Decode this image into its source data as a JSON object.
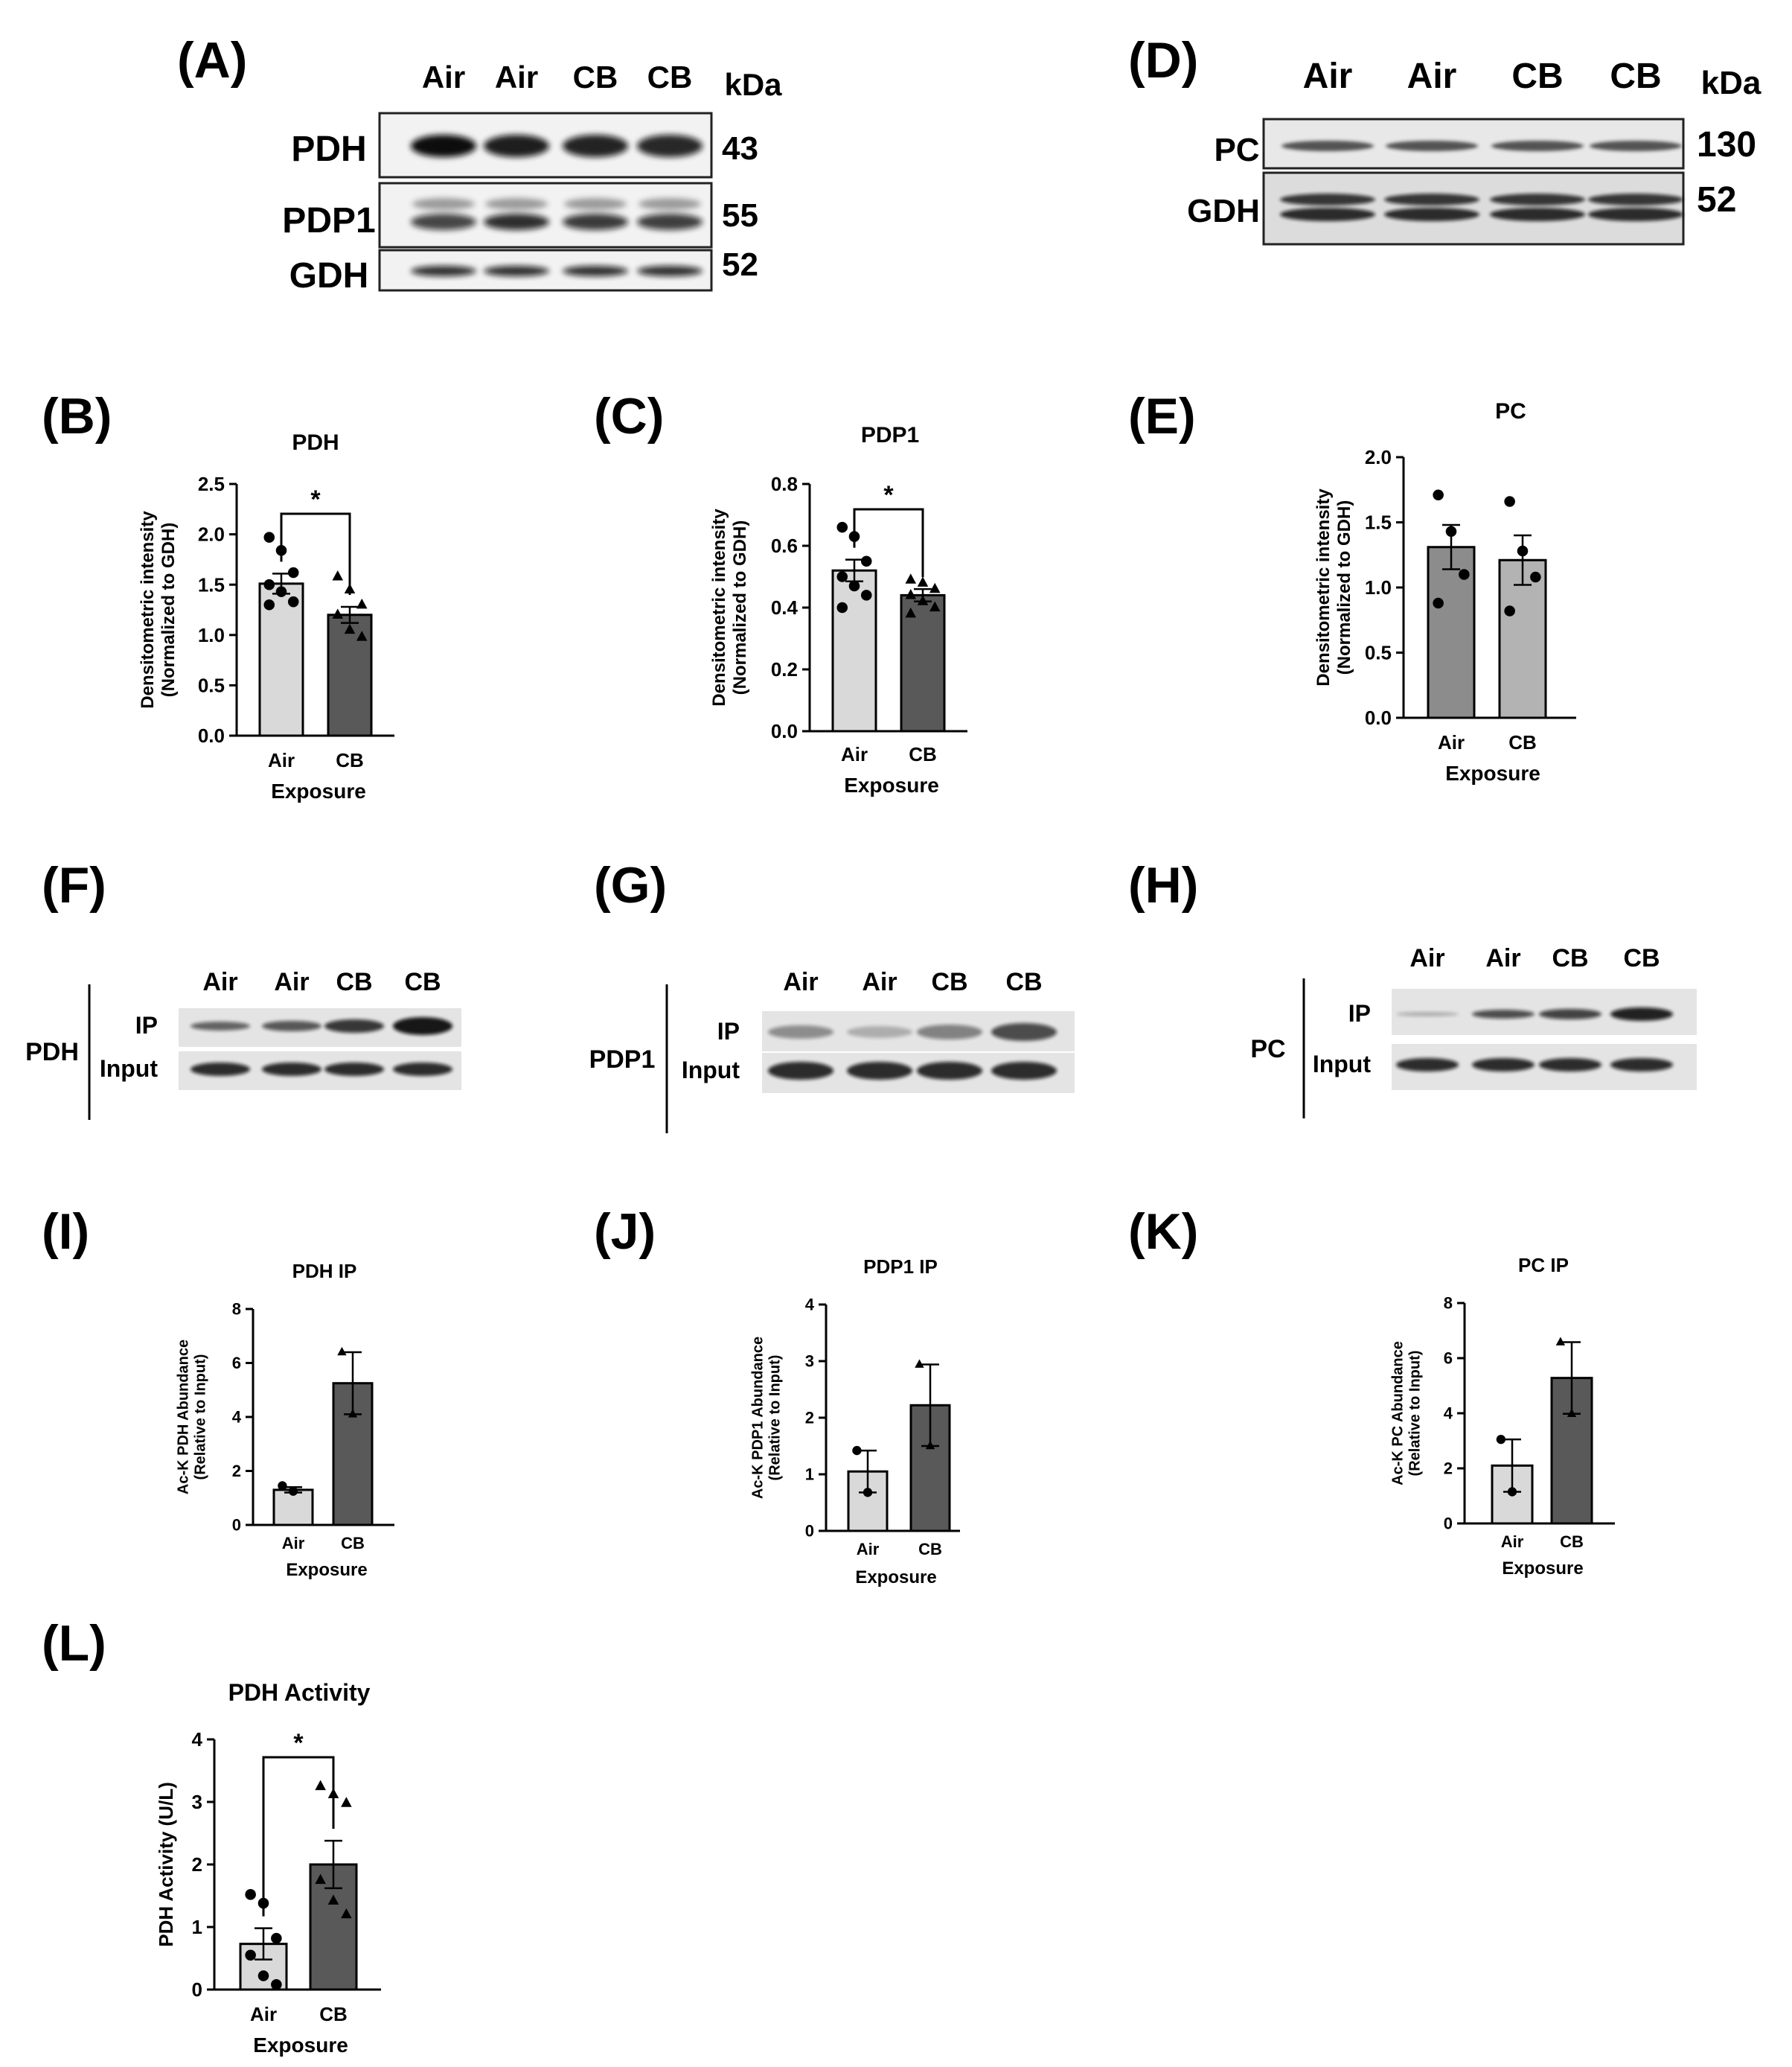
{
  "panel_labels": [
    "(A)",
    "(B)",
    "(C)",
    "(D)",
    "(E)",
    "(F)",
    "(G)",
    "(H)",
    "(I)",
    "(J)",
    "(K)",
    "(L)"
  ],
  "blot_A": {
    "lanes": [
      "Air",
      "Air",
      "CB",
      "CB"
    ],
    "unit": "kDa",
    "rows": [
      {
        "label": "PDH",
        "kda": "43"
      },
      {
        "label": "PDP1",
        "kda": "55"
      },
      {
        "label": "GDH",
        "kda": "52"
      }
    ]
  },
  "blot_D": {
    "lanes": [
      "Air",
      "Air",
      "CB",
      "CB"
    ],
    "unit": "kDa",
    "rows": [
      {
        "label": "PC",
        "kda": "130"
      },
      {
        "label": "GDH",
        "kda": "52"
      }
    ]
  },
  "ip_F": {
    "protein": "PDH",
    "rows": [
      "IP",
      "Input"
    ],
    "lanes": [
      "Air",
      "Air",
      "CB",
      "CB"
    ]
  },
  "ip_G": {
    "protein": "PDP1",
    "rows": [
      "IP",
      "Input"
    ],
    "lanes": [
      "Air",
      "Air",
      "CB",
      "CB"
    ]
  },
  "ip_H": {
    "protein": "PC",
    "rows": [
      "IP",
      "Input"
    ],
    "lanes": [
      "Air",
      "Air",
      "CB",
      "CB"
    ]
  },
  "chart_data": [
    {
      "id": "B",
      "type": "bar",
      "title": "PDH",
      "categories": [
        "Air",
        "CB"
      ],
      "values": [
        1.51,
        1.2
      ],
      "errors": [
        0.1,
        0.08
      ],
      "points": [
        [
          1.97,
          1.84,
          1.62,
          1.5,
          1.43,
          1.33,
          1.3
        ],
        [
          1.58,
          1.45,
          1.3,
          1.2,
          1.05,
          0.98
        ]
      ],
      "markers": [
        "circle",
        "triangle"
      ],
      "xlabel": "Exposure",
      "ylabel": "Densitometric intensity\n(Normalized to GDH)",
      "ylim": [
        0,
        2.5
      ],
      "yticks": [
        "0.0",
        "0.5",
        "1.0",
        "1.5",
        "2.0",
        "2.5"
      ],
      "significance": "*",
      "colors": [
        "#d9d9d9",
        "#595959"
      ]
    },
    {
      "id": "C",
      "type": "bar",
      "title": "PDP1",
      "categories": [
        "Air",
        "CB"
      ],
      "values": [
        0.52,
        0.44
      ],
      "errors": [
        0.035,
        0.02
      ],
      "points": [
        [
          0.66,
          0.63,
          0.55,
          0.5,
          0.47,
          0.44,
          0.4
        ],
        [
          0.49,
          0.48,
          0.46,
          0.44,
          0.42,
          0.4,
          0.38
        ]
      ],
      "markers": [
        "circle",
        "triangle"
      ],
      "xlabel": "Exposure",
      "ylabel": "Densitometric intensity\n(Normalized to GDH)",
      "ylim": [
        0,
        0.8
      ],
      "yticks": [
        "0.0",
        "0.2",
        "0.4",
        "0.6",
        "0.8"
      ],
      "significance": "*",
      "colors": [
        "#d9d9d9",
        "#595959"
      ]
    },
    {
      "id": "E",
      "type": "bar",
      "title": "PC",
      "categories": [
        "Air",
        "CB"
      ],
      "values": [
        1.31,
        1.21
      ],
      "errors": [
        0.17,
        0.19
      ],
      "points": [
        [
          1.71,
          1.43,
          1.1,
          0.88
        ],
        [
          1.66,
          1.28,
          1.08,
          0.82
        ]
      ],
      "markers": [
        "circle",
        "circle"
      ],
      "xlabel": "Exposure",
      "ylabel": "Densitometric intensity\n(Normalized to GDH)",
      "ylim": [
        0,
        2.0
      ],
      "yticks": [
        "0.0",
        "0.5",
        "1.0",
        "1.5",
        "2.0"
      ],
      "significance": "",
      "colors": [
        "#8c8c8c",
        "#b3b3b3"
      ]
    },
    {
      "id": "I",
      "type": "bar",
      "title": "PDH IP",
      "categories": [
        "Air",
        "CB"
      ],
      "values": [
        1.3,
        5.25
      ],
      "errors": [
        0.1,
        1.15
      ],
      "points": [
        [
          1.45,
          1.25
        ],
        [
          6.4,
          4.1
        ]
      ],
      "markers": [
        "circle",
        "triangle"
      ],
      "xlabel": "Exposure",
      "ylabel": "Ac-K PDH Abundance\n(Relative to Input)",
      "ylim": [
        0,
        8
      ],
      "yticks": [
        "0",
        "2",
        "4",
        "6",
        "8"
      ],
      "significance": "",
      "colors": [
        "#d9d9d9",
        "#595959"
      ]
    },
    {
      "id": "J",
      "type": "bar",
      "title": "PDP1 IP",
      "categories": [
        "Air",
        "CB"
      ],
      "values": [
        1.05,
        2.22
      ],
      "errors": [
        0.37,
        0.72
      ],
      "points": [
        [
          1.42,
          0.68
        ],
        [
          2.94,
          1.5
        ]
      ],
      "markers": [
        "circle",
        "triangle"
      ],
      "xlabel": "Exposure",
      "ylabel": "Ac-K PDP1 Abundance\n(Relative to Input)",
      "ylim": [
        0,
        4
      ],
      "yticks": [
        "0",
        "1",
        "2",
        "3",
        "4"
      ],
      "significance": "",
      "colors": [
        "#d9d9d9",
        "#595959"
      ]
    },
    {
      "id": "K",
      "type": "bar",
      "title": "PC IP",
      "categories": [
        "Air",
        "CB"
      ],
      "values": [
        2.1,
        5.28
      ],
      "errors": [
        0.95,
        1.3
      ],
      "points": [
        [
          3.05,
          1.15
        ],
        [
          6.58,
          3.98
        ]
      ],
      "markers": [
        "circle",
        "triangle"
      ],
      "xlabel": "Exposure",
      "ylabel": "Ac-K PC Abundance\n(Relative to Input)",
      "ylim": [
        0,
        8
      ],
      "yticks": [
        "0",
        "2",
        "4",
        "6",
        "8"
      ],
      "significance": "",
      "colors": [
        "#d9d9d9",
        "#595959"
      ]
    },
    {
      "id": "L",
      "type": "bar",
      "title": "PDH Activity",
      "categories": [
        "Air",
        "CB"
      ],
      "values": [
        0.73,
        2.0
      ],
      "errors": [
        0.25,
        0.38
      ],
      "points": [
        [
          1.52,
          1.38,
          0.82,
          0.55,
          0.22,
          0.08
        ],
        [
          3.25,
          3.12,
          2.98,
          1.75,
          1.42,
          1.2
        ]
      ],
      "markers": [
        "circle",
        "triangle"
      ],
      "xlabel": "Exposure",
      "ylabel": "PDH Activity (U/L)",
      "ylim": [
        0,
        4
      ],
      "yticks": [
        "0",
        "1",
        "2",
        "3",
        "4"
      ],
      "significance": "*",
      "colors": [
        "#d9d9d9",
        "#595959"
      ]
    }
  ]
}
